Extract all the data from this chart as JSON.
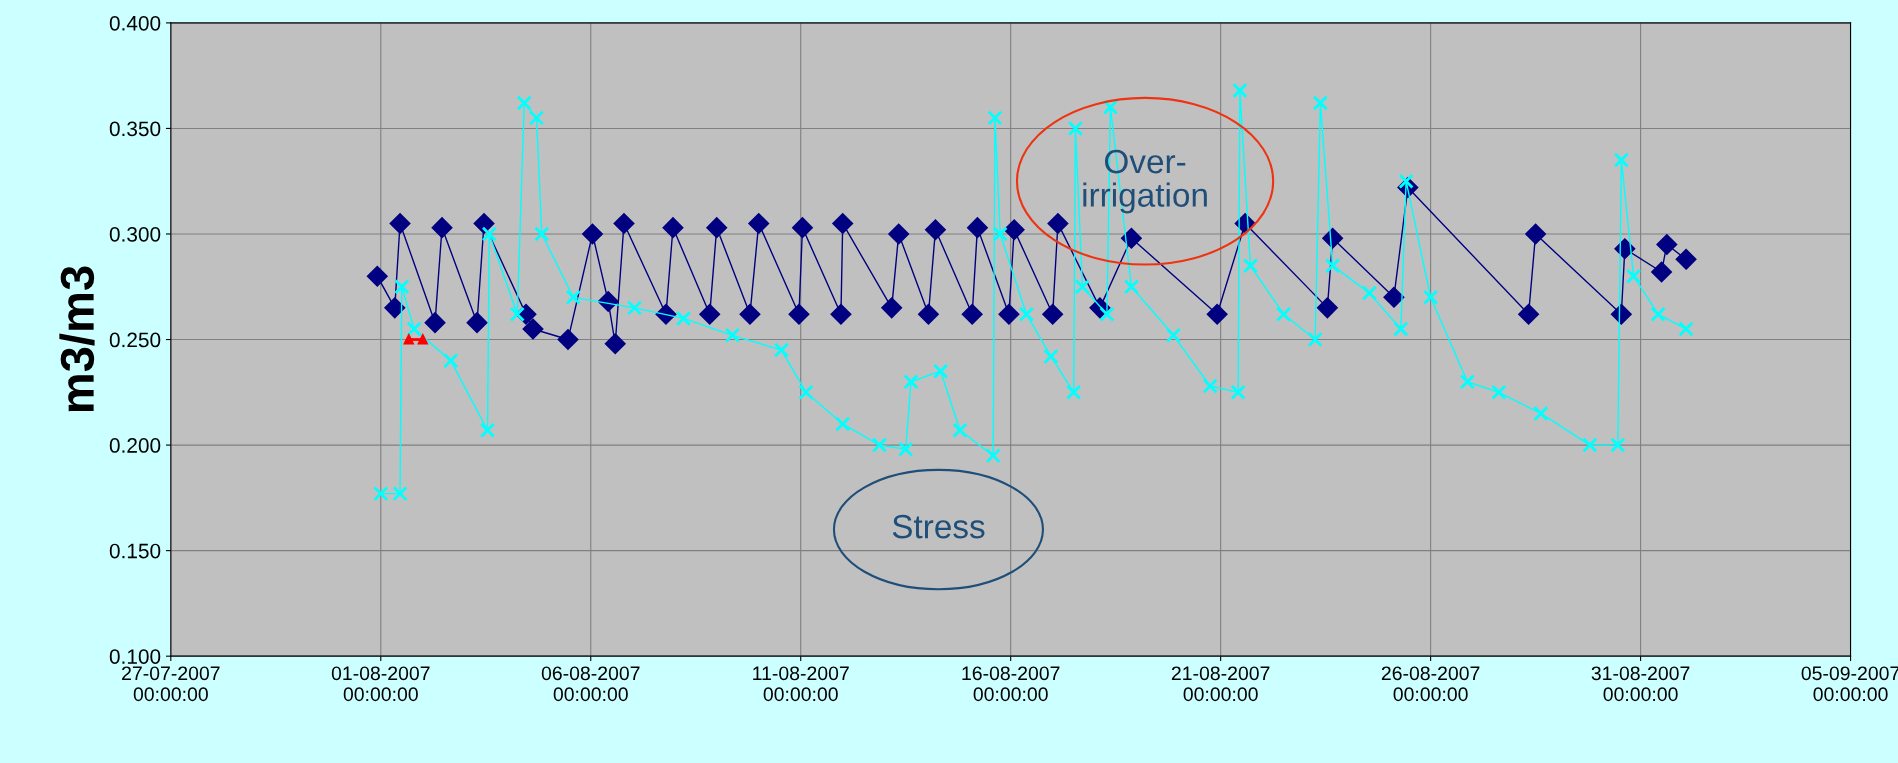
{
  "chart_data": {
    "type": "line",
    "ylabel": "m3/m3",
    "xlim": [
      "2007-07-27",
      "2007-09-05"
    ],
    "xticks": [
      {
        "value": "2007-07-27",
        "label": "27-07-2007\n00:00:00"
      },
      {
        "value": "2007-08-01",
        "label": "01-08-2007\n00:00:00"
      },
      {
        "value": "2007-08-06",
        "label": "06-08-2007\n00:00:00"
      },
      {
        "value": "2007-08-11",
        "label": "11-08-2007\n00:00:00"
      },
      {
        "value": "2007-08-16",
        "label": "16-08-2007\n00:00:00"
      },
      {
        "value": "2007-08-21",
        "label": "21-08-2007\n00:00:00"
      },
      {
        "value": "2007-08-26",
        "label": "26-08-2007\n00:00:00"
      },
      {
        "value": "2007-08-31",
        "label": "31-08-2007\n00:00:00"
      },
      {
        "value": "2007-09-05",
        "label": "05-09-2007\n00:00:00"
      }
    ],
    "ylim": [
      0.1,
      0.4
    ],
    "yticks": [
      {
        "value": 0.1,
        "label": "0.100"
      },
      {
        "value": 0.15,
        "label": "0.150"
      },
      {
        "value": 0.2,
        "label": "0.200"
      },
      {
        "value": 0.25,
        "label": "0.250"
      },
      {
        "value": 0.3,
        "label": "0.300"
      },
      {
        "value": 0.35,
        "label": "0.350"
      },
      {
        "value": 0.4,
        "label": "0.400"
      }
    ],
    "grid": true,
    "series": [
      {
        "color": "#000080",
        "marker": "diamond",
        "x": [
          "2007-07-31T22:00",
          "2007-08-01T08:00",
          "2007-08-01T11:00",
          "2007-08-02T07:00",
          "2007-08-02T11:00",
          "2007-08-03T07:00",
          "2007-08-03T11:00",
          "2007-08-04T11:00",
          "2007-08-04T15:00",
          "2007-08-05T11:00",
          "2007-08-06T01:00",
          "2007-08-06T10:00",
          "2007-08-06T14:00",
          "2007-08-06T19:00",
          "2007-08-07T19:00",
          "2007-08-07T23:00",
          "2007-08-08T20:00",
          "2007-08-09T00:00",
          "2007-08-09T19:00",
          "2007-08-10T00:00",
          "2007-08-10T23:00",
          "2007-08-11T01:00",
          "2007-08-11T23:00",
          "2007-08-12T00:00",
          "2007-08-13T04:00",
          "2007-08-13T08:00",
          "2007-08-14T01:00",
          "2007-08-14T05:00",
          "2007-08-15T02:00",
          "2007-08-15T05:00",
          "2007-08-15T23:00",
          "2007-08-16T02:00",
          "2007-08-17T00:00",
          "2007-08-17T03:00",
          "2007-08-18T03:00",
          "2007-08-18T21:00",
          "2007-08-20T22:00",
          "2007-08-21T14:00",
          "2007-08-23T13:00",
          "2007-08-23T16:00",
          "2007-08-25T03:00",
          "2007-08-25T11:00",
          "2007-08-28T08:00",
          "2007-08-28T12:00",
          "2007-08-30T13:00",
          "2007-08-30T15:00",
          "2007-08-31T12:00",
          "2007-08-31T15:00",
          "2007-09-01T02:00"
        ],
        "values": [
          0.28,
          0.265,
          0.305,
          0.258,
          0.303,
          0.258,
          0.305,
          0.262,
          0.255,
          0.25,
          0.3,
          0.268,
          0.248,
          0.305,
          0.262,
          0.303,
          0.262,
          0.303,
          0.262,
          0.305,
          0.262,
          0.303,
          0.262,
          0.305,
          0.265,
          0.3,
          0.262,
          0.302,
          0.262,
          0.303,
          0.262,
          0.302,
          0.262,
          0.305,
          0.265,
          0.298,
          0.262,
          0.305,
          0.265,
          0.298,
          0.27,
          0.322,
          0.262,
          0.3,
          0.262,
          0.293,
          0.282,
          0.295,
          0.288
        ]
      },
      {
        "color": "#00ffff",
        "marker": "cross",
        "x": [
          "2007-08-01T00:00",
          "2007-08-01T11:00",
          "2007-08-01T12:00",
          "2007-08-01T19:00",
          "2007-08-02T16:00",
          "2007-08-03T13:00",
          "2007-08-03T14:00",
          "2007-08-04T06:00",
          "2007-08-04T10:00",
          "2007-08-04T17:00",
          "2007-08-04T20:00",
          "2007-08-05T14:00",
          "2007-08-07T01:00",
          "2007-08-08T05:00",
          "2007-08-09T09:00",
          "2007-08-10T13:00",
          "2007-08-11T03:00",
          "2007-08-12T00:00",
          "2007-08-12T21:00",
          "2007-08-13T12:00",
          "2007-08-13T15:00",
          "2007-08-14T08:00",
          "2007-08-14T19:00",
          "2007-08-15T14:00",
          "2007-08-15T15:00",
          "2007-08-15T18:00",
          "2007-08-16T09:00",
          "2007-08-16T23:00",
          "2007-08-17T12:00",
          "2007-08-17T13:00",
          "2007-08-17T17:00",
          "2007-08-18T07:00",
          "2007-08-18T09:00",
          "2007-08-18T21:00",
          "2007-08-19T21:00",
          "2007-08-20T18:00",
          "2007-08-21T10:00",
          "2007-08-21T11:00",
          "2007-08-21T17:00",
          "2007-08-22T12:00",
          "2007-08-23T06:00",
          "2007-08-23T09:00",
          "2007-08-23T16:00",
          "2007-08-24T13:00",
          "2007-08-25T07:00",
          "2007-08-25T10:00",
          "2007-08-26T00:00",
          "2007-08-26T21:00",
          "2007-08-27T15:00",
          "2007-08-28T15:00",
          "2007-08-29T19:00",
          "2007-08-30T11:00",
          "2007-08-30T13:00",
          "2007-08-30T20:00",
          "2007-08-31T10:00",
          "2007-09-01T02:00"
        ],
        "values": [
          0.177,
          0.177,
          0.275,
          0.255,
          0.24,
          0.207,
          0.3,
          0.262,
          0.362,
          0.355,
          0.3,
          0.27,
          0.265,
          0.26,
          0.252,
          0.245,
          0.225,
          0.21,
          0.2,
          0.198,
          0.23,
          0.235,
          0.207,
          0.195,
          0.355,
          0.3,
          0.262,
          0.242,
          0.225,
          0.35,
          0.275,
          0.262,
          0.36,
          0.275,
          0.252,
          0.228,
          0.225,
          0.368,
          0.285,
          0.262,
          0.25,
          0.362,
          0.285,
          0.272,
          0.255,
          0.325,
          0.27,
          0.23,
          0.225,
          0.215,
          0.2,
          0.2,
          0.335,
          0.28,
          0.262,
          0.255
        ]
      },
      {
        "color": "#ff0000",
        "marker": "triangle",
        "x": [
          "2007-08-01T16:00",
          "2007-08-02T00:00"
        ],
        "values": [
          0.25,
          0.25
        ]
      }
    ],
    "annotations": [
      "Over-\nirrigation",
      "Stress"
    ]
  }
}
